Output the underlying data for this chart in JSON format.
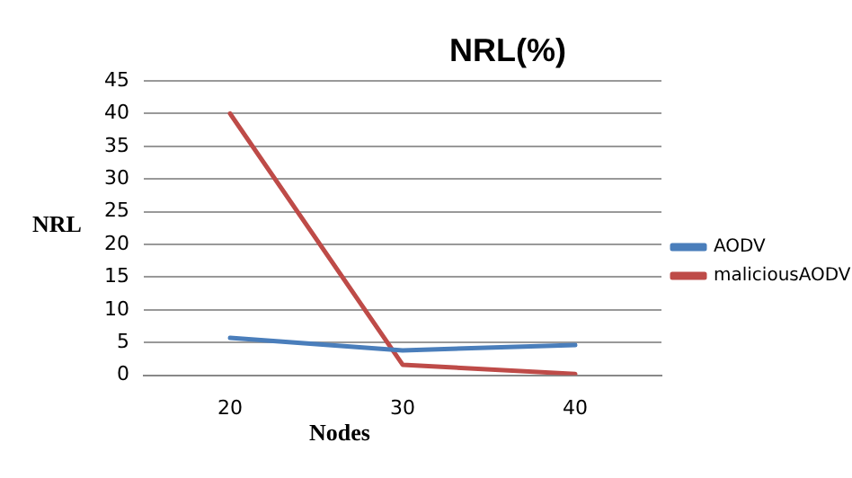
{
  "chart_data": {
    "type": "line",
    "title": "NRL(%)",
    "xlabel": "Nodes",
    "ylabel": "NRL",
    "categories": [
      "20",
      "30",
      "40"
    ],
    "series": [
      {
        "name": "AODV",
        "color": "#4a7ebb",
        "values": [
          5.7,
          3.8,
          4.6
        ]
      },
      {
        "name": "maliciousAODV",
        "color": "#be4b48",
        "values": [
          40,
          1.6,
          0.2
        ]
      }
    ],
    "ylim": [
      0,
      45
    ],
    "yticks": [
      0,
      5,
      10,
      15,
      20,
      25,
      30,
      35,
      40,
      45
    ],
    "grid": "y",
    "legend": "right",
    "marker": "none",
    "line_style": "solid"
  }
}
